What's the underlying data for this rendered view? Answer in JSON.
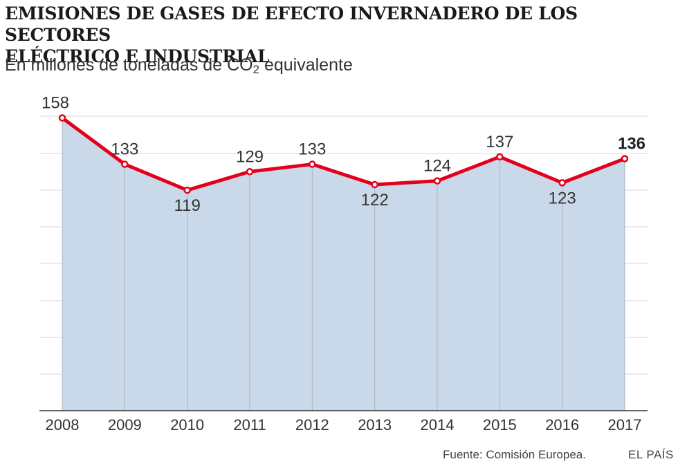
{
  "header": {
    "title_line1": "EMISIONES DE GASES DE EFECTO INVERNADERO DE LOS SECTORES",
    "title_line2": "ELÉCTRICO E INDUSTRIAL",
    "subtitle_main": "En millones de toneladas de CO",
    "subtitle_sub": "2",
    "subtitle_tail": " equivalente"
  },
  "footer": {
    "source": "Fuente: Comisión Europea.",
    "brand": "EL PAÍS"
  },
  "colors": {
    "line": "#e3001b",
    "area": "#c9d9ea",
    "grid": "#d4d4d4",
    "axis": "#333333",
    "text": "#333333"
  },
  "chart_data": {
    "type": "area",
    "x": [
      "2008",
      "2009",
      "2010",
      "2011",
      "2012",
      "2013",
      "2014",
      "2015",
      "2016",
      "2017"
    ],
    "series": [
      {
        "values": [
          158,
          133,
          119,
          129,
          133,
          122,
          124,
          137,
          123,
          136
        ]
      }
    ],
    "data_labels": [
      "158",
      "133",
      "119",
      "129",
      "133",
      "122",
      "124",
      "137",
      "123",
      "136"
    ],
    "highlight_index": 9,
    "ylim": [
      0,
      158
    ],
    "grid": true,
    "legend": "none"
  }
}
